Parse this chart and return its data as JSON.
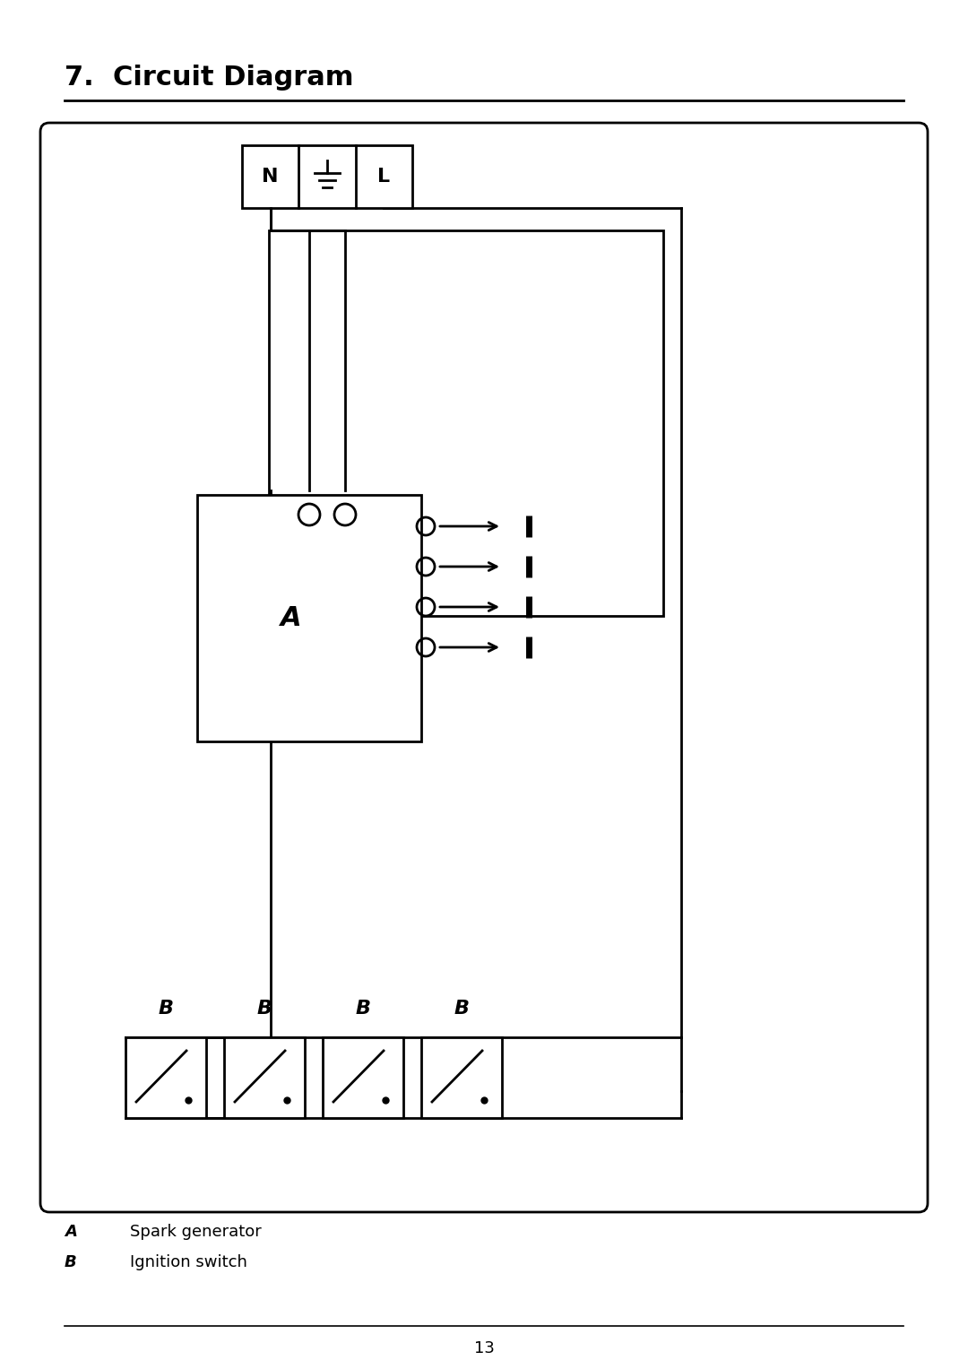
{
  "title": "7.  Circuit Diagram",
  "bg_color": "#ffffff",
  "legend_A": "Spark generator",
  "legend_B": "Ignition switch",
  "page_number": "13"
}
